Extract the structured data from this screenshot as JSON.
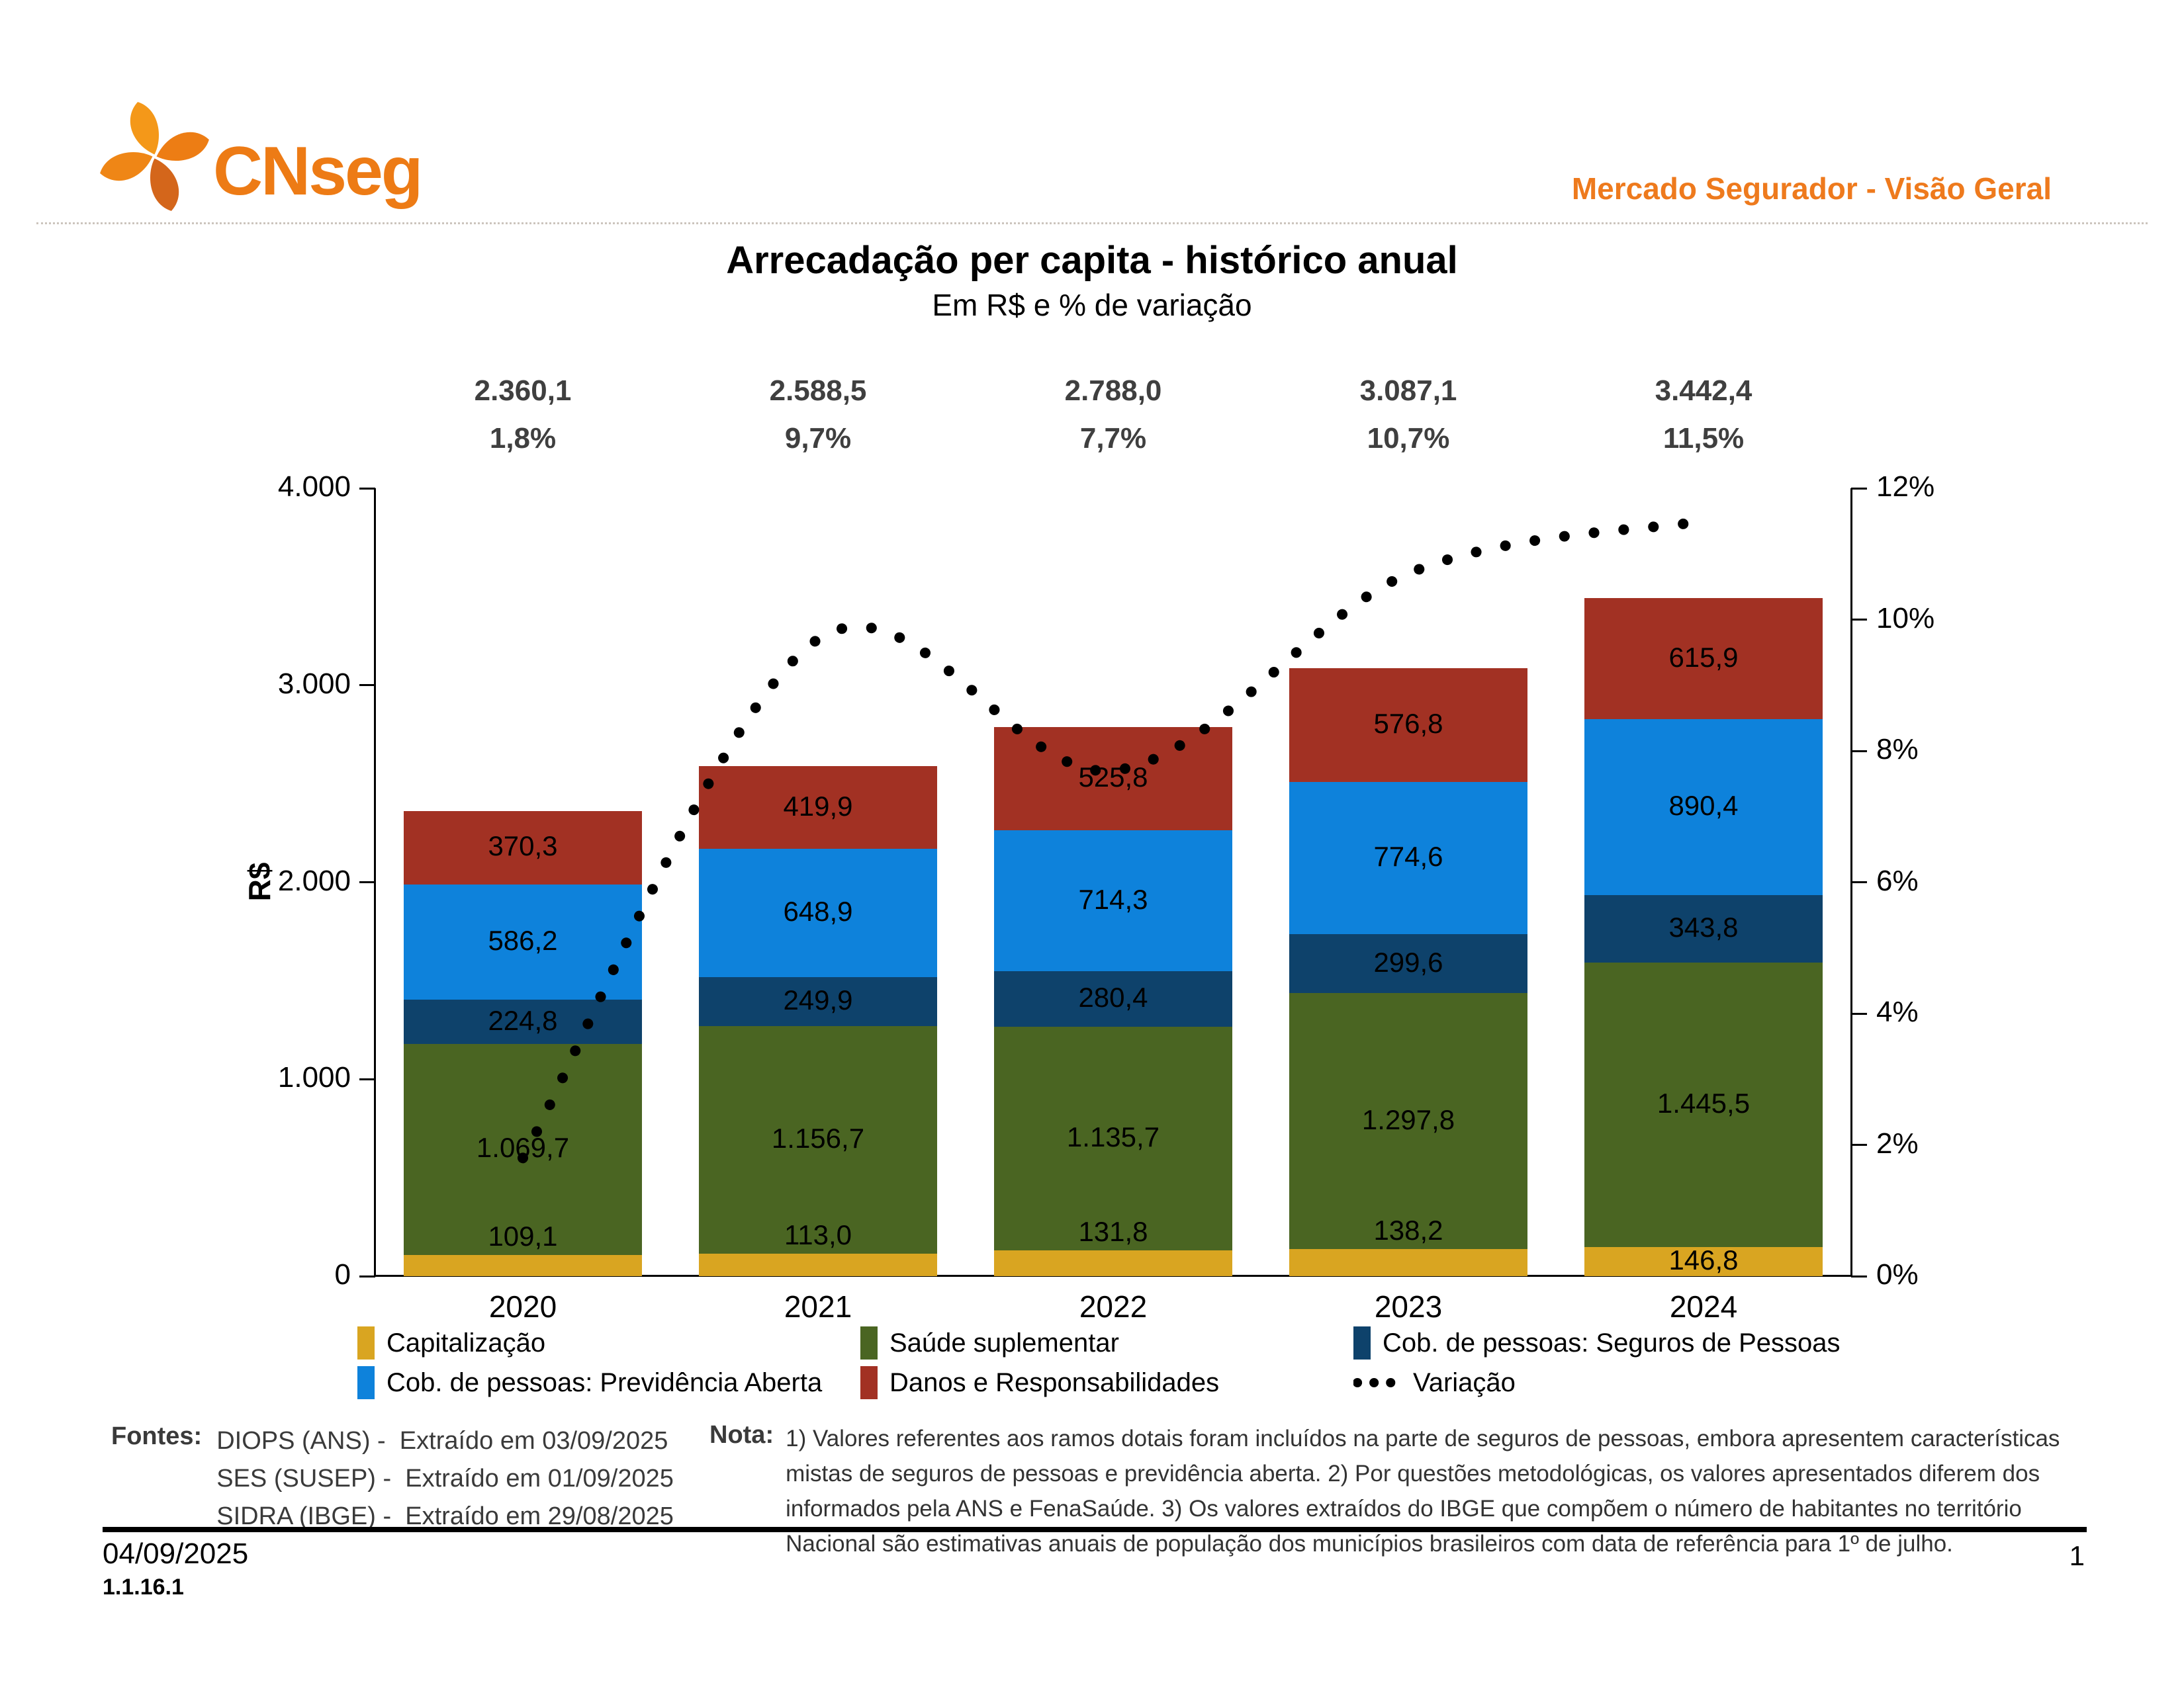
{
  "header": {
    "brand": "CNseg",
    "right_title": "Mercado Segurador - Visão Geral"
  },
  "title": "Arrecadação per capita - histórico anual",
  "subtitle": "Em R$ e % de variação",
  "chart_data": {
    "type": "bar",
    "stacked": true,
    "categories": [
      "2020",
      "2021",
      "2022",
      "2023",
      "2024"
    ],
    "totals": {
      "values": [
        2360.1,
        2588.5,
        2788.0,
        3087.1,
        3442.4
      ],
      "labels": [
        "2.360,1",
        "2.588,5",
        "2.788,0",
        "3.087,1",
        "3.442,4"
      ]
    },
    "variation": {
      "name": "Variação",
      "values": [
        1.8,
        9.7,
        7.7,
        10.7,
        11.5
      ],
      "labels": [
        "1,8%",
        "9,7%",
        "7,7%",
        "10,7%",
        "11,5%"
      ],
      "color": "#000000",
      "style": "dotted"
    },
    "series": [
      {
        "name": "Capitalização",
        "color": "#D9A521",
        "values": [
          109.1,
          113.0,
          131.8,
          138.2,
          146.8
        ],
        "labels": [
          "109,1",
          "113,0",
          "131,8",
          "138,2",
          "146,8"
        ]
      },
      {
        "name": "Saúde suplementar",
        "color": "#4A6522",
        "values": [
          1069.7,
          1156.7,
          1135.7,
          1297.8,
          1445.5
        ],
        "labels": [
          "1.069,7",
          "1.156,7",
          "1.135,7",
          "1.297,8",
          "1.445,5"
        ]
      },
      {
        "name": "Cob. de pessoas: Seguros de Pessoas",
        "color": "#0E426B",
        "values": [
          224.8,
          249.9,
          280.4,
          299.6,
          343.8
        ],
        "labels": [
          "224,8",
          "249,9",
          "280,4",
          "299,6",
          "343,8"
        ]
      },
      {
        "name": "Cob. de pessoas: Previdência Aberta",
        "color": "#0E82DB",
        "values": [
          586.2,
          648.9,
          714.3,
          774.6,
          890.4
        ],
        "labels": [
          "586,2",
          "648,9",
          "714,3",
          "774,6",
          "890,4"
        ]
      },
      {
        "name": "Danos e Responsabilidades",
        "color": "#A23123",
        "values": [
          370.3,
          419.9,
          525.8,
          576.8,
          615.9
        ],
        "labels": [
          "370,3",
          "419,9",
          "525,8",
          "576,8",
          "615,9"
        ]
      }
    ],
    "y_left": {
      "label": "R$",
      "max": 4000,
      "tick_step": 1000,
      "tick_labels": [
        "4.000",
        "3.000",
        "2.000",
        "1.000",
        "0"
      ]
    },
    "y_right": {
      "max": 12,
      "tick_step": 2,
      "tick_labels": [
        "12%",
        "10%",
        "8%",
        "6%",
        "4%",
        "2%",
        "0%"
      ]
    },
    "legend_order": [
      "Capitalização",
      "Saúde suplementar",
      "Cob. de pessoas: Seguros de Pessoas",
      "Cob. de pessoas: Previdência Aberta",
      "Danos e Responsabilidades",
      "Variação"
    ],
    "legend_position": "bottom",
    "grid": false
  },
  "sources": {
    "label": "Fontes:",
    "items": [
      "DIOPS (ANS) -  Extraído em 03/09/2025",
      "SES (SUSEP) -  Extraído em 01/09/2025",
      "SIDRA (IBGE) -  Extraído em 29/08/2025"
    ]
  },
  "note": {
    "label": "Nota:",
    "text": "1) Valores referentes aos ramos dotais foram incluídos na parte de seguros de pessoas, embora apresentem características mistas de seguros de pessoas e previdência aberta. 2) Por questões metodológicas, os valores apresentados diferem dos informados pela ANS e FenaSaúde. 3) Os valores extraídos do IBGE que compõem o número de habitantes no território Nacional são estimativas anuais de população dos municípios brasileiros com data de referência para 1º de julho."
  },
  "footer": {
    "date": "04/09/2025",
    "code": "1.1.16.1",
    "page": "1"
  }
}
